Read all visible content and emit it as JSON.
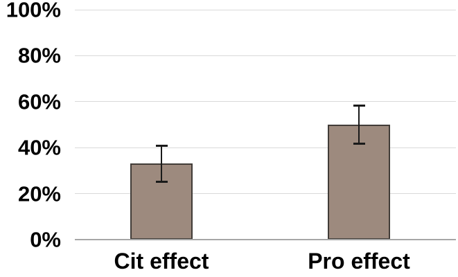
{
  "chart_data": {
    "type": "bar",
    "title": "",
    "xlabel": "",
    "ylabel": "",
    "categories": [
      "Cit effect",
      "Pro effect"
    ],
    "values": [
      33,
      50
    ],
    "error_bars": [
      {
        "low": 25,
        "high": 41
      },
      {
        "low": 41.5,
        "high": 58.5
      }
    ],
    "ylim": [
      0,
      100
    ],
    "ytick_values": [
      0,
      20,
      40,
      60,
      80,
      100
    ],
    "ytick_labels": [
      "0%",
      "20%",
      "40%",
      "60%",
      "80%",
      "100%"
    ],
    "grid": true,
    "legend_position": "none",
    "colors": {
      "background": "#ffffff",
      "bar_fill": "#9d8a7e",
      "bar_border": "#413c38",
      "error_bar": "#1a1a1a",
      "gridline": "#d9d9d9",
      "axis_line": "#a6a6a6",
      "text": "#000000"
    }
  }
}
